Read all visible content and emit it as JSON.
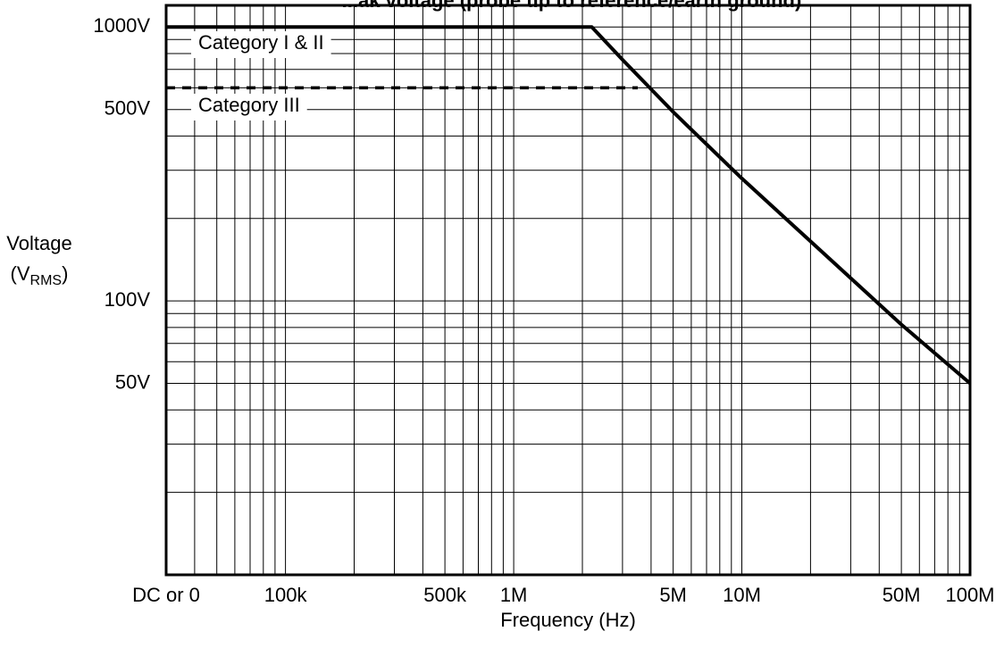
{
  "chart_data": {
    "type": "line",
    "title": "...ak voltage (probe tip to reference/earth ground)",
    "xlabel": "Frequency (Hz)",
    "ylabel_line1": "Voltage",
    "ylabel_line2_prefix": "(V",
    "ylabel_line2_sub": "RMS",
    "ylabel_line2_suffix": ")",
    "x_scale": "log",
    "y_scale": "log",
    "xlim": [
      30000,
      100000000
    ],
    "ylim": [
      10,
      1200
    ],
    "grid": true,
    "x_ticks": [
      {
        "value": 30000,
        "label": "DC or 0"
      },
      {
        "value": 100000,
        "label": "100k"
      },
      {
        "value": 500000,
        "label": "500k"
      },
      {
        "value": 1000000,
        "label": "1M"
      },
      {
        "value": 5000000,
        "label": "5M"
      },
      {
        "value": 10000000,
        "label": "10M"
      },
      {
        "value": 50000000,
        "label": "50M"
      },
      {
        "value": 100000000,
        "label": "100M"
      }
    ],
    "y_ticks": [
      {
        "value": 1000,
        "label": "1000V"
      },
      {
        "value": 500,
        "label": "500V"
      },
      {
        "value": 100,
        "label": "100V"
      },
      {
        "value": 50,
        "label": "50V"
      }
    ],
    "series": [
      {
        "name": "Category I & II",
        "style": "solid",
        "color": "#000000",
        "points": [
          [
            30000,
            1000
          ],
          [
            2200000,
            1000
          ],
          [
            3000000,
            760
          ],
          [
            5000000,
            490
          ],
          [
            10000000,
            280
          ],
          [
            20000000,
            165
          ],
          [
            50000000,
            82
          ],
          [
            100000000,
            50
          ]
        ]
      },
      {
        "name": "Category III",
        "style": "dashed",
        "color": "#000000",
        "points": [
          [
            30000,
            600
          ],
          [
            3500000,
            600
          ]
        ]
      }
    ],
    "legend_placement": "top-left"
  }
}
